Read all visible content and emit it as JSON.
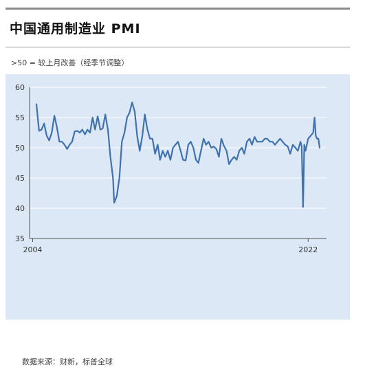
{
  "header": {
    "title": "中国通用制造业 PMI",
    "subtitle": ">50 = 较上月改善（经季节调整）"
  },
  "footer": {
    "source": "数据来源：财新，标普全球"
  },
  "colors": {
    "line": "#3f72ad",
    "panel_bg": "#dce8f5",
    "grid": "#ffffff"
  },
  "chart_data": {
    "type": "line",
    "title": "中国通用制造业 PMI",
    "subtitle": ">50 = 较上月改善（经季节调整）",
    "xlim": [
      2004.0,
      2022.75
    ],
    "ylim": [
      35,
      60
    ],
    "yticks": [
      35,
      40,
      45,
      50,
      55,
      60
    ],
    "xticks": [
      2004,
      2022
    ],
    "xtick_labels": [
      "2004",
      "2022"
    ],
    "grid": true,
    "series": [
      {
        "values": [
          [
            2004.25,
            57.2
          ],
          [
            2004.42,
            52.8
          ],
          [
            2004.58,
            53.0
          ],
          [
            2004.75,
            54.0
          ],
          [
            2004.92,
            52.0
          ],
          [
            2005.08,
            51.2
          ],
          [
            2005.25,
            52.5
          ],
          [
            2005.42,
            55.3
          ],
          [
            2005.58,
            53.5
          ],
          [
            2005.75,
            51.0
          ],
          [
            2005.92,
            51.0
          ],
          [
            2006.08,
            50.5
          ],
          [
            2006.25,
            49.8
          ],
          [
            2006.42,
            50.5
          ],
          [
            2006.58,
            51.0
          ],
          [
            2006.75,
            52.7
          ],
          [
            2006.92,
            52.8
          ],
          [
            2007.08,
            52.5
          ],
          [
            2007.25,
            53.0
          ],
          [
            2007.42,
            52.2
          ],
          [
            2007.58,
            53.0
          ],
          [
            2007.75,
            52.5
          ],
          [
            2007.92,
            55.0
          ],
          [
            2008.08,
            53.0
          ],
          [
            2008.25,
            55.2
          ],
          [
            2008.42,
            53.0
          ],
          [
            2008.58,
            53.2
          ],
          [
            2008.75,
            55.5
          ],
          [
            2008.92,
            53.0
          ],
          [
            2009.08,
            48.5
          ],
          [
            2009.25,
            45.0
          ],
          [
            2009.33,
            40.9
          ],
          [
            2009.5,
            42.0
          ],
          [
            2009.67,
            45.0
          ],
          [
            2009.83,
            51.0
          ],
          [
            2010.0,
            52.5
          ],
          [
            2010.17,
            55.0
          ],
          [
            2010.33,
            55.8
          ],
          [
            2010.5,
            57.5
          ],
          [
            2010.67,
            56.0
          ],
          [
            2010.83,
            52.0
          ],
          [
            2011.0,
            49.5
          ],
          [
            2011.17,
            52.0
          ],
          [
            2011.33,
            55.5
          ],
          [
            2011.5,
            53.0
          ],
          [
            2011.67,
            51.5
          ],
          [
            2011.83,
            51.5
          ],
          [
            2012.0,
            49.0
          ],
          [
            2012.17,
            50.5
          ],
          [
            2012.33,
            48.0
          ],
          [
            2012.5,
            49.5
          ],
          [
            2012.67,
            48.5
          ],
          [
            2012.83,
            49.5
          ],
          [
            2013.0,
            48.0
          ],
          [
            2013.17,
            50.0
          ],
          [
            2013.33,
            50.5
          ],
          [
            2013.5,
            51.0
          ],
          [
            2013.67,
            49.5
          ],
          [
            2013.83,
            48.0
          ],
          [
            2014.0,
            47.9
          ],
          [
            2014.17,
            50.5
          ],
          [
            2014.33,
            51.0
          ],
          [
            2014.5,
            50.0
          ],
          [
            2014.67,
            48.0
          ],
          [
            2014.83,
            47.5
          ],
          [
            2015.0,
            49.5
          ],
          [
            2015.17,
            51.5
          ],
          [
            2015.33,
            50.5
          ],
          [
            2015.5,
            51.0
          ],
          [
            2015.67,
            50.0
          ],
          [
            2015.83,
            50.2
          ],
          [
            2016.0,
            49.8
          ],
          [
            2016.17,
            48.5
          ],
          [
            2016.33,
            51.5
          ],
          [
            2016.5,
            50.3
          ],
          [
            2016.67,
            49.5
          ],
          [
            2016.83,
            47.3
          ],
          [
            2017.0,
            48.0
          ],
          [
            2017.17,
            48.5
          ],
          [
            2017.33,
            48.0
          ],
          [
            2017.5,
            49.5
          ],
          [
            2017.67,
            50.0
          ],
          [
            2017.83,
            49.0
          ],
          [
            2018.0,
            51.0
          ],
          [
            2018.17,
            51.5
          ],
          [
            2018.33,
            50.5
          ],
          [
            2018.5,
            51.8
          ],
          [
            2018.67,
            51.0
          ],
          [
            2018.83,
            51.0
          ],
          [
            2019.0,
            51.0
          ],
          [
            2019.17,
            51.5
          ],
          [
            2019.33,
            51.5
          ],
          [
            2019.5,
            51.0
          ],
          [
            2019.67,
            51.0
          ],
          [
            2019.83,
            50.5
          ],
          [
            2020.0,
            51.0
          ],
          [
            2020.17,
            51.5
          ],
          [
            2020.33,
            51.0
          ],
          [
            2020.5,
            50.5
          ],
          [
            2020.67,
            50.2
          ],
          [
            2020.83,
            49.0
          ],
          [
            2021.0,
            50.5
          ],
          [
            2021.17,
            50.0
          ],
          [
            2021.33,
            49.5
          ],
          [
            2021.5,
            51.0
          ],
          [
            2021.58,
            50.2
          ],
          [
            2021.67,
            40.2
          ],
          [
            2021.75,
            50.5
          ],
          [
            2021.83,
            49.5
          ],
          [
            2022.0,
            51.5
          ],
          [
            2022.17,
            52.0
          ],
          [
            2022.33,
            52.5
          ],
          [
            2022.42,
            55.0
          ],
          [
            2022.5,
            52.0
          ],
          [
            2022.58,
            51.5
          ],
          [
            2022.67,
            51.5
          ],
          [
            2022.75,
            50.0
          ]
        ]
      }
    ]
  }
}
